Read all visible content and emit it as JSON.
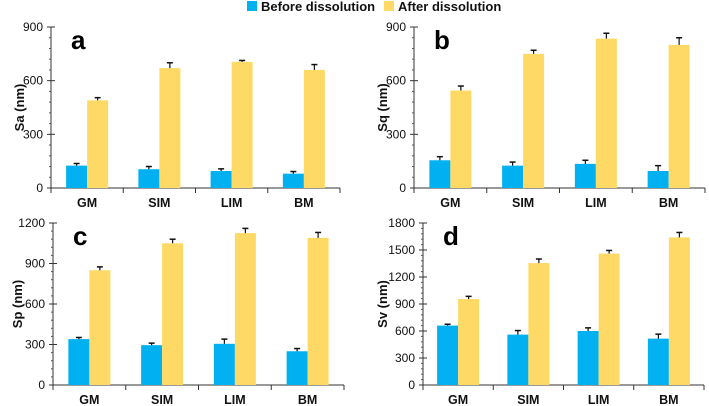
{
  "legend": {
    "before": {
      "label": "Before dissolution",
      "color": "#00b0f0"
    },
    "after": {
      "label": "After dissolution",
      "color": "#ffd966"
    }
  },
  "chart_data": [
    {
      "type": "bar",
      "panel": "a",
      "ylabel": "Sa (nm)",
      "ylim": [
        0,
        900
      ],
      "yticks": [
        0,
        300,
        600,
        900
      ],
      "categories": [
        "GM",
        "SIM",
        "LIM",
        "BM"
      ],
      "series": [
        {
          "name": "Before dissolution",
          "values": [
            125,
            105,
            95,
            80
          ],
          "errors": [
            12,
            15,
            12,
            12
          ]
        },
        {
          "name": "After dissolution",
          "values": [
            490,
            670,
            705,
            660
          ],
          "errors": [
            15,
            30,
            8,
            30
          ]
        }
      ]
    },
    {
      "type": "bar",
      "panel": "b",
      "ylabel": "Sq (nm)",
      "ylim": [
        0,
        900
      ],
      "yticks": [
        0,
        300,
        600,
        900
      ],
      "categories": [
        "GM",
        "SIM",
        "LIM",
        "BM"
      ],
      "series": [
        {
          "name": "Before dissolution",
          "values": [
            155,
            125,
            135,
            95
          ],
          "errors": [
            20,
            20,
            20,
            30
          ]
        },
        {
          "name": "After dissolution",
          "values": [
            545,
            750,
            835,
            800
          ],
          "errors": [
            25,
            20,
            30,
            40
          ]
        }
      ]
    },
    {
      "type": "bar",
      "panel": "c",
      "ylabel": "Sp (nm)",
      "ylim": [
        0,
        1200
      ],
      "yticks": [
        0,
        300,
        600,
        900,
        1200
      ],
      "categories": [
        "GM",
        "SIM",
        "LIM",
        "BM"
      ],
      "series": [
        {
          "name": "Before dissolution",
          "values": [
            340,
            295,
            305,
            250
          ],
          "errors": [
            12,
            15,
            35,
            20
          ]
        },
        {
          "name": "After dissolution",
          "values": [
            850,
            1050,
            1125,
            1090
          ],
          "errors": [
            25,
            30,
            35,
            40
          ]
        }
      ]
    },
    {
      "type": "bar",
      "panel": "d",
      "ylabel": "Sv (nm)",
      "ylim": [
        0,
        1800
      ],
      "yticks": [
        0,
        300,
        600,
        900,
        1200,
        1500,
        1800
      ],
      "categories": [
        "GM",
        "SIM",
        "LIM",
        "BM"
      ],
      "series": [
        {
          "name": "Before dissolution",
          "values": [
            660,
            560,
            600,
            515
          ],
          "errors": [
            15,
            45,
            35,
            50
          ]
        },
        {
          "name": "After dissolution",
          "values": [
            955,
            1355,
            1460,
            1640
          ],
          "errors": [
            30,
            45,
            35,
            55
          ]
        }
      ]
    }
  ]
}
